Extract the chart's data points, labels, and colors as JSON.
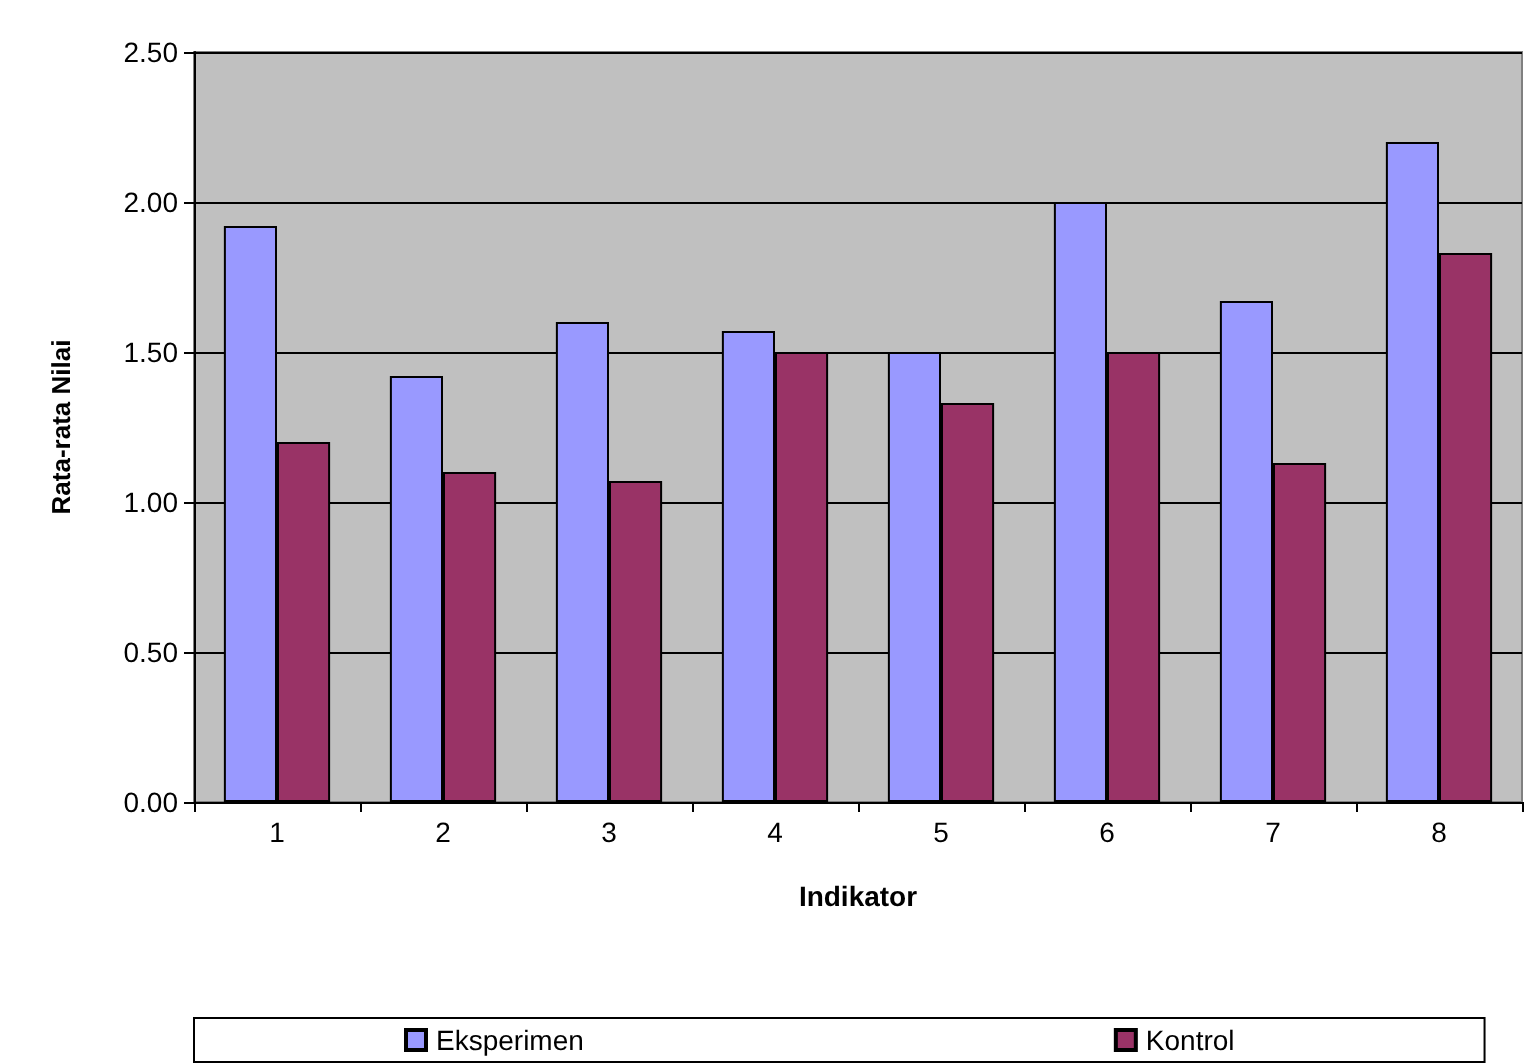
{
  "chart_data": {
    "type": "bar",
    "xlabel": "Indikator",
    "ylabel": "Rata-rata Nilai",
    "categories": [
      "1",
      "2",
      "3",
      "4",
      "5",
      "6",
      "7",
      "8"
    ],
    "series": [
      {
        "name": "Eksperimen",
        "color": "#9999ff",
        "values": [
          1.92,
          1.42,
          1.6,
          1.57,
          1.5,
          2.0,
          1.67,
          2.2
        ]
      },
      {
        "name": "Kontrol",
        "color": "#993366",
        "values": [
          1.2,
          1.1,
          1.07,
          1.5,
          1.33,
          1.5,
          1.13,
          1.83
        ]
      }
    ],
    "ylim": [
      0,
      2.5
    ],
    "yticks": [
      {
        "value": 0,
        "label": "0.00"
      },
      {
        "value": 0.5,
        "label": "0.50"
      },
      {
        "value": 1,
        "label": "1.00"
      },
      {
        "value": 1.5,
        "label": "1.50"
      },
      {
        "value": 2,
        "label": "2.00"
      },
      {
        "value": 2.5,
        "label": "2.50"
      }
    ],
    "grid": "y",
    "legend": "bottom"
  }
}
